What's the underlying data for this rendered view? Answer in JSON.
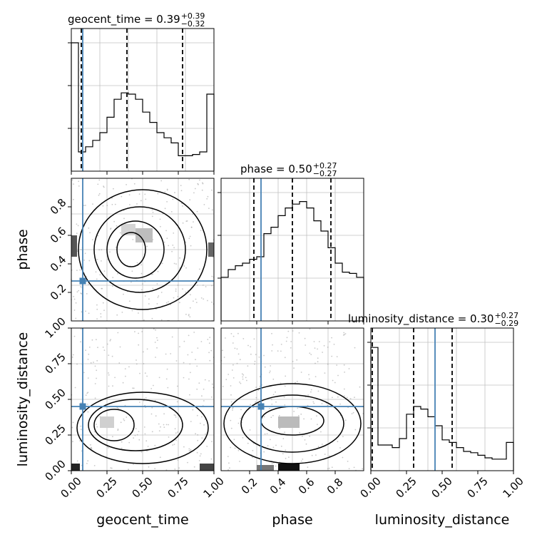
{
  "colors": {
    "truth": "#4682b4",
    "grid": "#c0c0c0",
    "line": "#000000"
  },
  "chart_data": {
    "type": "corner",
    "parameters": [
      "geocent_time",
      "phase",
      "luminosity_distance"
    ],
    "truths": {
      "geocent_time": 0.08,
      "phase": 0.28,
      "luminosity_distance": 0.45
    },
    "panels": [
      {
        "id": "hist-geocent_time",
        "type": "histogram",
        "parameter": "geocent_time",
        "title": "geocent_time = 0.39",
        "title_sup": "+0.39",
        "title_sub": "−0.32",
        "xlim": [
          0,
          1
        ],
        "quantiles": [
          0.07,
          0.39,
          0.78
        ],
        "bins": [
          0.0,
          0.05,
          0.1,
          0.15,
          0.2,
          0.25,
          0.3,
          0.35,
          0.4,
          0.45,
          0.5,
          0.55,
          0.6,
          0.65,
          0.7,
          0.75,
          0.8,
          0.85,
          0.9,
          0.95,
          1.0
        ],
        "counts": [
          1.0,
          0.15,
          0.19,
          0.24,
          0.3,
          0.42,
          0.56,
          0.61,
          0.6,
          0.56,
          0.46,
          0.38,
          0.3,
          0.26,
          0.22,
          0.12,
          0.12,
          0.13,
          0.15,
          0.6
        ]
      },
      {
        "id": "hist-phase",
        "type": "histogram",
        "parameter": "phase",
        "title": "phase = 0.50",
        "title_sup": "+0.27",
        "title_sub": "−0.27",
        "xlim": [
          0,
          1
        ],
        "quantiles": [
          0.23,
          0.5,
          0.77
        ],
        "bins": [
          0.0,
          0.05,
          0.1,
          0.15,
          0.2,
          0.25,
          0.3,
          0.35,
          0.4,
          0.45,
          0.5,
          0.55,
          0.6,
          0.65,
          0.7,
          0.75,
          0.8,
          0.85,
          0.9,
          0.95,
          1.0
        ],
        "counts": [
          0.34,
          0.4,
          0.43,
          0.45,
          0.48,
          0.5,
          0.68,
          0.73,
          0.82,
          0.88,
          0.91,
          0.93,
          0.88,
          0.78,
          0.7,
          0.57,
          0.45,
          0.38,
          0.37,
          0.34
        ]
      },
      {
        "id": "hist-luminosity_distance",
        "type": "histogram",
        "parameter": "luminosity_distance",
        "title": "luminosity_distance = 0.30",
        "title_sup": "+0.27",
        "title_sub": "−0.29",
        "xlim": [
          0,
          1
        ],
        "xticks": [
          "0.00",
          "0.25",
          "0.50",
          "0.75",
          "1.00"
        ],
        "quantiles": [
          0.01,
          0.3,
          0.57
        ],
        "bins": [
          0.0,
          0.05,
          0.1,
          0.15,
          0.2,
          0.25,
          0.3,
          0.35,
          0.4,
          0.45,
          0.5,
          0.55,
          0.6,
          0.65,
          0.7,
          0.75,
          0.8,
          0.85,
          0.9,
          0.95,
          1.0
        ],
        "counts": [
          0.96,
          0.2,
          0.2,
          0.18,
          0.25,
          0.44,
          0.5,
          0.48,
          0.42,
          0.35,
          0.24,
          0.22,
          0.18,
          0.15,
          0.14,
          0.12,
          0.1,
          0.09,
          0.09,
          0.22
        ]
      },
      {
        "id": "contour-phase-vs-geocent_time",
        "type": "contour",
        "x": "geocent_time",
        "y": "phase",
        "xlim": [
          0,
          1
        ],
        "ylim": [
          0,
          1
        ],
        "ytick_values": [
          0.2,
          0.4,
          0.6,
          0.8
        ],
        "yticks": [
          "0.2",
          "0.4",
          "0.6",
          "0.8"
        ],
        "ylabel": "phase"
      },
      {
        "id": "contour-luminosity_distance-vs-geocent_time",
        "type": "contour",
        "x": "geocent_time",
        "y": "luminosity_distance",
        "xlim": [
          0,
          1
        ],
        "ylim": [
          0,
          1
        ],
        "xtick_values": [
          0,
          0.25,
          0.5,
          0.75,
          1.0
        ],
        "xticks": [
          "0.00",
          "0.25",
          "0.50",
          "0.75",
          "1.00"
        ],
        "ytick_values": [
          0,
          0.25,
          0.5,
          0.75,
          1.0
        ],
        "yticks": [
          "0.00",
          "0.25",
          "0.50",
          "0.75",
          "1.00"
        ],
        "xlabel": "geocent_time",
        "ylabel": "luminosity_distance"
      },
      {
        "id": "contour-luminosity_distance-vs-phase",
        "type": "contour",
        "x": "phase",
        "y": "luminosity_distance",
        "xlim": [
          0,
          1
        ],
        "ylim": [
          0,
          1
        ],
        "xtick_values": [
          0.2,
          0.4,
          0.6,
          0.8
        ],
        "xticks": [
          "0.2",
          "0.4",
          "0.6",
          "0.8"
        ],
        "xlabel": "phase"
      }
    ],
    "bottom_labels": [
      "geocent_time",
      "phase",
      "luminosity_distance"
    ],
    "left_labels": [
      "phase",
      "luminosity_distance"
    ]
  }
}
